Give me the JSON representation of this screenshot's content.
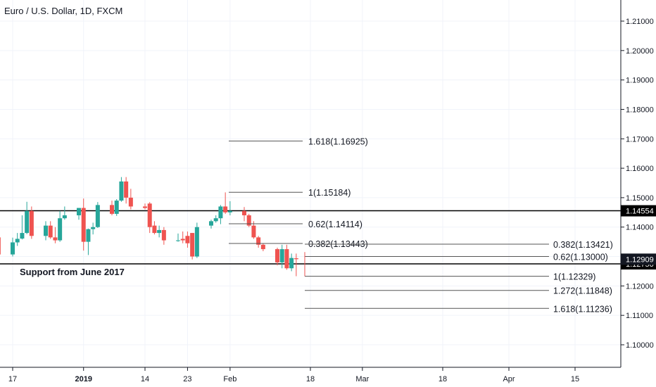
{
  "header": {
    "title": "Euro / U.S. Dollar, 1D, FXCM"
  },
  "annotation": {
    "note": "Support from June 2017"
  },
  "chart_data": {
    "type": "candlestick",
    "symbol": "Euro / U.S. Dollar",
    "interval": "1D",
    "source": "FXCM",
    "ylim": [
      1.093,
      1.216
    ],
    "y_ticks": [
      "1.21000",
      "1.20000",
      "1.19000",
      "1.18000",
      "1.17000",
      "1.16000",
      "1.15000",
      "1.14000",
      "1.13000",
      "1.12000",
      "1.11000",
      "1.10000"
    ],
    "x_ticks": [
      {
        "label": "17",
        "date": "2018-12-17",
        "bold": false
      },
      {
        "label": "2019",
        "date": "2019-01-01",
        "bold": true
      },
      {
        "label": "14",
        "date": "2019-01-14",
        "bold": false
      },
      {
        "label": "23",
        "date": "2019-01-23",
        "bold": false
      },
      {
        "label": "Feb",
        "date": "2019-02-01",
        "bold": false
      },
      {
        "label": "18",
        "date": "2019-02-18",
        "bold": false
      },
      {
        "label": "Mar",
        "date": "2019-03-01",
        "bold": false
      },
      {
        "label": "18",
        "date": "2019-03-18",
        "bold": false
      },
      {
        "label": "Apr",
        "date": "2019-04-01",
        "bold": false
      },
      {
        "label": "15",
        "date": "2019-04-15",
        "bold": false
      }
    ],
    "candles": [
      {
        "date": "2018-12-14",
        "o": 1.1365,
        "h": 1.1378,
        "l": 1.1269,
        "c": 1.1307
      },
      {
        "date": "2018-12-17",
        "o": 1.1307,
        "h": 1.1364,
        "l": 1.13,
        "c": 1.1348
      },
      {
        "date": "2018-12-18",
        "o": 1.1348,
        "h": 1.138,
        "l": 1.1336,
        "c": 1.136
      },
      {
        "date": "2018-12-19",
        "o": 1.1361,
        "h": 1.144,
        "l": 1.1358,
        "c": 1.138
      },
      {
        "date": "2018-12-20",
        "o": 1.138,
        "h": 1.1486,
        "l": 1.1376,
        "c": 1.1455
      },
      {
        "date": "2018-12-21",
        "o": 1.1455,
        "h": 1.147,
        "l": 1.136,
        "c": 1.137
      },
      {
        "date": "2018-12-24",
        "o": 1.137,
        "h": 1.142,
        "l": 1.1355,
        "c": 1.1405
      },
      {
        "date": "2018-12-25",
        "o": 1.1405,
        "h": 1.142,
        "l": 1.136,
        "c": 1.1365
      },
      {
        "date": "2018-12-26",
        "o": 1.1365,
        "h": 1.14,
        "l": 1.1345,
        "c": 1.1355
      },
      {
        "date": "2018-12-27",
        "o": 1.1355,
        "h": 1.1455,
        "l": 1.135,
        "c": 1.143
      },
      {
        "date": "2018-12-28",
        "o": 1.143,
        "h": 1.147,
        "l": 1.1425,
        "c": 1.144
      },
      {
        "date": "2018-12-31",
        "o": 1.144,
        "h": 1.1465,
        "l": 1.1425,
        "c": 1.1465
      },
      {
        "date": "2019-01-01",
        "o": 1.1465,
        "h": 1.1497,
        "l": 1.132,
        "c": 1.135
      },
      {
        "date": "2019-01-02",
        "o": 1.135,
        "h": 1.1395,
        "l": 1.1305,
        "c": 1.1393
      },
      {
        "date": "2019-01-03",
        "o": 1.1393,
        "h": 1.1415,
        "l": 1.1375,
        "c": 1.14
      },
      {
        "date": "2019-01-04",
        "o": 1.14,
        "h": 1.1485,
        "l": 1.1397,
        "c": 1.1475
      },
      {
        "date": "2019-01-07",
        "o": 1.1475,
        "h": 1.149,
        "l": 1.144,
        "c": 1.1445
      },
      {
        "date": "2019-01-08",
        "o": 1.1445,
        "h": 1.1495,
        "l": 1.1438,
        "c": 1.149
      },
      {
        "date": "2019-01-09",
        "o": 1.149,
        "h": 1.157,
        "l": 1.1486,
        "c": 1.1555
      },
      {
        "date": "2019-01-10",
        "o": 1.1555,
        "h": 1.157,
        "l": 1.148,
        "c": 1.15
      },
      {
        "date": "2019-01-11",
        "o": 1.15,
        "h": 1.153,
        "l": 1.146,
        "c": 1.147
      },
      {
        "date": "2019-01-14",
        "o": 1.147,
        "h": 1.148,
        "l": 1.146,
        "c": 1.1465
      },
      {
        "date": "2019-01-15",
        "o": 1.148,
        "h": 1.1485,
        "l": 1.138,
        "c": 1.14
      },
      {
        "date": "2019-01-16",
        "o": 1.1405,
        "h": 1.142,
        "l": 1.1375,
        "c": 1.138
      },
      {
        "date": "2019-01-17",
        "o": 1.138,
        "h": 1.1405,
        "l": 1.1365,
        "c": 1.139
      },
      {
        "date": "2019-01-18",
        "o": 1.139,
        "h": 1.14,
        "l": 1.134,
        "c": 1.1355
      },
      {
        "date": "2019-01-21",
        "o": 1.1355,
        "h": 1.1378,
        "l": 1.135,
        "c": 1.1355
      },
      {
        "date": "2019-01-22",
        "o": 1.136,
        "h": 1.1385,
        "l": 1.1345,
        "c": 1.1355
      },
      {
        "date": "2019-01-23",
        "o": 1.137,
        "h": 1.1385,
        "l": 1.133,
        "c": 1.1345
      },
      {
        "date": "2019-01-24",
        "o": 1.138,
        "h": 1.138,
        "l": 1.129,
        "c": 1.13
      },
      {
        "date": "2019-01-25",
        "o": 1.13,
        "h": 1.1415,
        "l": 1.1295,
        "c": 1.14
      },
      {
        "date": "2019-01-28",
        "o": 1.1405,
        "h": 1.1425,
        "l": 1.1395,
        "c": 1.142
      },
      {
        "date": "2019-01-29",
        "o": 1.142,
        "h": 1.144,
        "l": 1.1415,
        "c": 1.143
      },
      {
        "date": "2019-01-30",
        "o": 1.143,
        "h": 1.1475,
        "l": 1.141,
        "c": 1.147
      },
      {
        "date": "2019-01-31",
        "o": 1.147,
        "h": 1.1518,
        "l": 1.1445,
        "c": 1.145
      },
      {
        "date": "2019-02-01",
        "o": 1.145,
        "h": 1.1488,
        "l": 1.144,
        "c": 1.1455
      },
      {
        "date": "2019-02-04",
        "o": 1.1455,
        "h": 1.1468,
        "l": 1.142,
        "c": 1.144
      },
      {
        "date": "2019-02-05",
        "o": 1.144,
        "h": 1.1445,
        "l": 1.14,
        "c": 1.1405
      },
      {
        "date": "2019-02-06",
        "o": 1.1405,
        "h": 1.142,
        "l": 1.136,
        "c": 1.1365
      },
      {
        "date": "2019-02-07",
        "o": 1.1365,
        "h": 1.137,
        "l": 1.133,
        "c": 1.134
      },
      {
        "date": "2019-02-08",
        "o": 1.134,
        "h": 1.1345,
        "l": 1.1318,
        "c": 1.1325
      },
      {
        "date": "2019-02-11",
        "o": 1.1325,
        "h": 1.133,
        "l": 1.127,
        "c": 1.128
      },
      {
        "date": "2019-02-12",
        "o": 1.128,
        "h": 1.134,
        "l": 1.126,
        "c": 1.1325
      },
      {
        "date": "2019-02-13",
        "o": 1.1325,
        "h": 1.134,
        "l": 1.1255,
        "c": 1.126
      },
      {
        "date": "2019-02-14",
        "o": 1.126,
        "h": 1.131,
        "l": 1.125,
        "c": 1.1295
      },
      {
        "date": "2019-02-15",
        "o": 1.1294,
        "h": 1.131,
        "l": 1.1233,
        "c": 1.1291
      }
    ],
    "horizontal_lines": [
      {
        "price": 1.14554,
        "label": "1.14554"
      },
      {
        "price": 1.1275,
        "label": "1.12750"
      }
    ],
    "current_price": {
      "price": 1.12909,
      "label": "1.12909"
    },
    "fib_projection_1": [
      {
        "ratio_label": "1.618(1.16925)",
        "price": 1.16925
      },
      {
        "ratio_label": "1(1.15184)",
        "price": 1.15184
      },
      {
        "ratio_label": "0.62(1.14114)",
        "price": 1.14114
      },
      {
        "ratio_label": "0.382(1.13443)",
        "price": 1.13443
      }
    ],
    "fib_projection_2": [
      {
        "ratio_label": "0.382(1.13421)",
        "price": 1.13421
      },
      {
        "ratio_label": "0.62(1.13000)",
        "price": 1.13
      },
      {
        "ratio_label": "1(1.12329)",
        "price": 1.12329
      },
      {
        "ratio_label": "1.272(1.11848)",
        "price": 1.11848
      },
      {
        "ratio_label": "1.618(1.11236)",
        "price": 1.11236
      }
    ],
    "colors": {
      "up": "#26a69a",
      "down": "#ef5350",
      "line": "#000000",
      "fib": "#555555",
      "tag_bg": "#000000",
      "current_tag_bg": "#131722"
    }
  }
}
